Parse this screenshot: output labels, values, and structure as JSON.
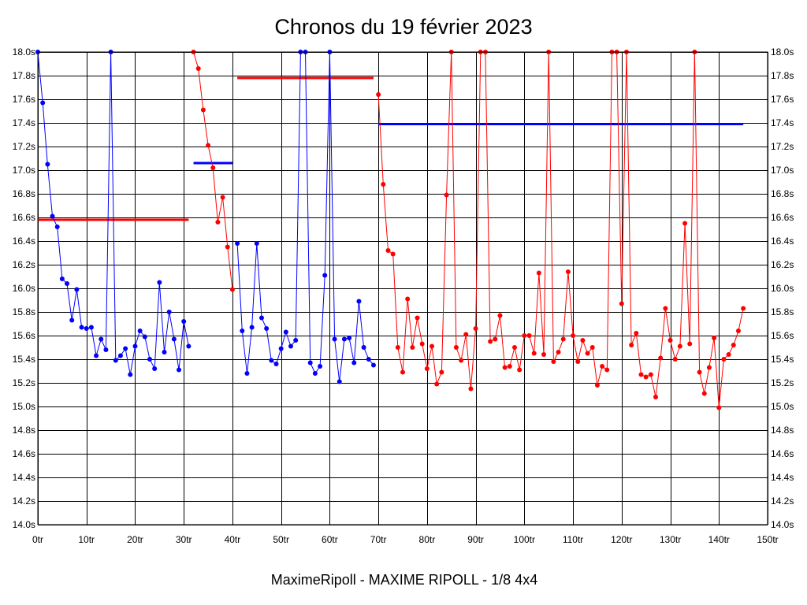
{
  "chart_data": {
    "type": "line",
    "title": "Chronos du 19 février 2023",
    "subtitle": "MaximeRipoll - MAXIME RIPOLL - 1/8 4x4",
    "xlabel": "",
    "ylabel": "",
    "xlim": [
      0,
      150
    ],
    "ylim": [
      14.0,
      18.0
    ],
    "x_ticks": [
      "0tr",
      "10tr",
      "20tr",
      "30tr",
      "40tr",
      "50tr",
      "60tr",
      "70tr",
      "80tr",
      "90tr",
      "100tr",
      "110tr",
      "120tr",
      "130tr",
      "140tr",
      "150tr"
    ],
    "y_ticks": [
      "18.0s",
      "17.8s",
      "17.6s",
      "17.4s",
      "17.2s",
      "17.0s",
      "16.8s",
      "16.6s",
      "16.4s",
      "16.2s",
      "16.0s",
      "15.8s",
      "15.6s",
      "15.4s",
      "15.2s",
      "15.0s",
      "14.8s",
      "14.6s",
      "14.4s",
      "14.2s",
      "14.0s"
    ],
    "grid": true,
    "series": [
      {
        "color": "#0000ff",
        "x": [
          0,
          1,
          2,
          3,
          4,
          5,
          6,
          7,
          8,
          9,
          10,
          11,
          12,
          13,
          14,
          15,
          16,
          17,
          18,
          19,
          20,
          21,
          22,
          23,
          24,
          25,
          26,
          27,
          28,
          29,
          30,
          31
        ],
        "values": [
          18.0,
          17.57,
          17.05,
          16.61,
          16.52,
          16.08,
          16.04,
          15.73,
          15.99,
          15.67,
          15.66,
          15.67,
          15.43,
          15.57,
          15.48,
          18.0,
          15.39,
          15.43,
          15.49,
          15.27,
          15.51,
          15.64,
          15.59,
          15.4,
          15.32,
          16.05,
          15.46,
          15.8,
          15.57,
          15.31,
          15.72,
          15.51
        ]
      },
      {
        "color": "#ff0000",
        "x": [
          32,
          33,
          34,
          35,
          36,
          37,
          38,
          39,
          40
        ],
        "values": [
          18.0,
          17.86,
          17.51,
          17.21,
          17.02,
          16.56,
          16.77,
          16.35,
          15.99
        ]
      },
      {
        "color": "#0000ff",
        "x": [
          41,
          42,
          43,
          44,
          45,
          46,
          47,
          48,
          49,
          50,
          51,
          52,
          53,
          54,
          55,
          56,
          57,
          58,
          59,
          60,
          61,
          62,
          63,
          64,
          65,
          66,
          67,
          68,
          69
        ],
        "values": [
          16.38,
          15.64,
          15.28,
          15.67,
          16.38,
          15.75,
          15.66,
          15.39,
          15.36,
          15.49,
          15.63,
          15.51,
          15.56,
          18.0,
          18.0,
          15.37,
          15.28,
          15.34,
          16.11,
          18.0,
          15.57,
          15.21,
          15.57,
          15.58,
          15.37,
          15.89,
          15.5,
          15.4,
          15.35
        ]
      },
      {
        "color": "#ff0000",
        "x": [
          70,
          71,
          72,
          73,
          74,
          75,
          76,
          77,
          78,
          79,
          80,
          81,
          82,
          83,
          84,
          85,
          86,
          87,
          88,
          89,
          90,
          91,
          92,
          93,
          94,
          95,
          96,
          97,
          98,
          99,
          100,
          101,
          102,
          103,
          104,
          105,
          106,
          107,
          108,
          109,
          110,
          111,
          112,
          113,
          114,
          115,
          116,
          117,
          118,
          119,
          120,
          121,
          122,
          123,
          124,
          125,
          126,
          127,
          128,
          129,
          130,
          131,
          132,
          133,
          134,
          135,
          136,
          137,
          138,
          139,
          140,
          141,
          142,
          143,
          144,
          145
        ],
        "values": [
          17.64,
          16.88,
          16.32,
          16.29,
          15.5,
          15.29,
          15.91,
          15.5,
          15.75,
          15.53,
          15.32,
          15.51,
          15.19,
          15.29,
          16.79,
          18.0,
          15.5,
          15.39,
          15.61,
          15.15,
          15.66,
          18.0,
          18.0,
          15.55,
          15.57,
          15.77,
          15.33,
          15.34,
          15.5,
          15.31,
          15.6,
          15.6,
          15.45,
          16.13,
          15.44,
          18.0,
          15.38,
          15.46,
          15.57,
          16.14,
          15.6,
          15.38,
          15.56,
          15.45,
          15.5,
          15.18,
          15.34,
          15.31,
          18.0,
          18.0,
          15.87,
          18.0,
          15.52,
          15.62,
          15.27,
          15.25,
          15.27,
          15.08,
          15.41,
          15.83,
          15.56,
          15.4,
          15.51,
          16.55,
          15.53,
          18.0,
          15.29,
          15.11,
          15.33,
          15.58,
          14.99,
          15.4,
          15.44,
          15.52,
          15.64,
          15.83
        ]
      }
    ],
    "reference_lines": [
      {
        "color": "#ff0000",
        "x_start": 0,
        "x_end": 31,
        "value": 16.58
      },
      {
        "color": "#0000ff",
        "x_start": 32,
        "x_end": 40,
        "value": 17.06
      },
      {
        "color": "#ff0000",
        "x_start": 41,
        "x_end": 69,
        "value": 17.78
      },
      {
        "color": "#0000ff",
        "x_start": 70,
        "x_end": 145,
        "value": 17.39
      }
    ]
  }
}
